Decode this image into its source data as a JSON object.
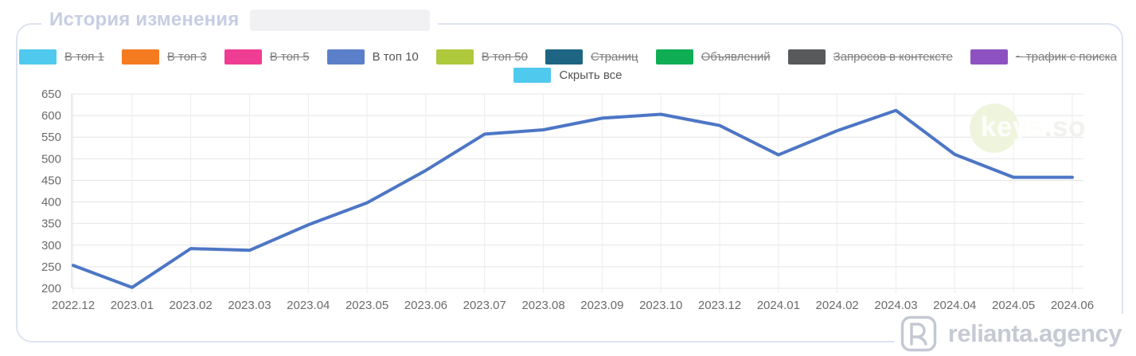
{
  "card": {
    "title": "История изменения"
  },
  "legend": {
    "items": [
      {
        "label": "В топ 1",
        "color": "#4fc9ee",
        "hidden": true
      },
      {
        "label": "В топ 3",
        "color": "#f47b20",
        "hidden": true
      },
      {
        "label": "В топ 5",
        "color": "#f03d94",
        "hidden": true
      },
      {
        "label": "В топ 10",
        "color": "#5b80c9",
        "hidden": false
      },
      {
        "label": "В топ 50",
        "color": "#aec93b",
        "hidden": true
      },
      {
        "label": "Страниц",
        "color": "#1d6583",
        "hidden": true
      },
      {
        "label": "Объявлений",
        "color": "#0fae54",
        "hidden": true
      },
      {
        "label": "Запросов в контексте",
        "color": "#58595b",
        "hidden": true
      },
      {
        "label": "~ трафик с поиска",
        "color": "#8e52c0",
        "hidden": true
      }
    ],
    "hide_all_label": "Скрыть все",
    "hide_all_color": "#4fc9ee"
  },
  "chart_data": {
    "type": "line",
    "title": "История изменения",
    "categories": [
      "2022.12",
      "2023.01",
      "2023.02",
      "2023.03",
      "2023.04",
      "2023.05",
      "2023.06",
      "2023.07",
      "2023.08",
      "2023.09",
      "2023.10",
      "2023.12",
      "2024.01",
      "2024.02",
      "2024.03",
      "2024.04",
      "2024.05",
      "2024.06"
    ],
    "series": [
      {
        "name": "В топ 10",
        "color": "#4d76c5",
        "values": [
          253,
          202,
          292,
          288,
          347,
          398,
          473,
          557,
          567,
          594,
          603,
          577,
          509,
          565,
          612,
          510,
          457,
          457
        ]
      }
    ],
    "ylim": [
      200,
      650
    ],
    "ytick_step": 50,
    "grid": true,
    "legend_position": "top"
  },
  "watermark": {
    "bold": "keys",
    "rest": ".so"
  },
  "branding": {
    "text": "relianta.agency"
  }
}
